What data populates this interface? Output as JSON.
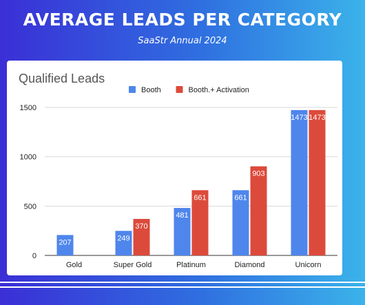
{
  "header": {
    "title": "AVERAGE LEADS PER CATEGORY",
    "subtitle": "SaaStr Annual 2024"
  },
  "chart_data": {
    "type": "bar",
    "title": "Qualified Leads",
    "categories": [
      "Gold",
      "Super Gold",
      "Platinum",
      "Diamond",
      "Unicorn"
    ],
    "series": [
      {
        "name": "Booth",
        "color": "#4f86ec",
        "values": [
          207,
          249,
          481,
          661,
          1473
        ]
      },
      {
        "name": "Booth.+ Activation",
        "color": "#dc4a3b",
        "values": [
          null,
          370,
          661,
          903,
          1473
        ]
      }
    ],
    "y_ticks": [
      0,
      500,
      1000,
      1500
    ],
    "ylim": [
      0,
      1500
    ],
    "grid": true,
    "legend_position": "top-center",
    "data_labels": true
  }
}
